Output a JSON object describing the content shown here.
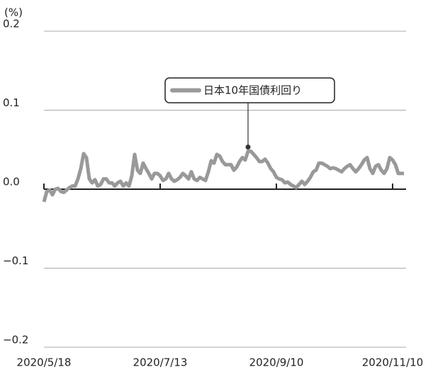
{
  "chart_data": {
    "type": "line",
    "y_label": "(%)",
    "categories": [
      "2020/5/18",
      null,
      null,
      null,
      null,
      null,
      null,
      null,
      null,
      null,
      null,
      null,
      null,
      null,
      null,
      null,
      null,
      null,
      null,
      null,
      null,
      null,
      null,
      null,
      null,
      null,
      null,
      null,
      null,
      null,
      null,
      null,
      null,
      null,
      null,
      null,
      null,
      null,
      null,
      null,
      null,
      "2020/7/13",
      null,
      null,
      null,
      null,
      null,
      null,
      null,
      null,
      null,
      null,
      null,
      null,
      null,
      null,
      null,
      null,
      null,
      null,
      null,
      null,
      null,
      null,
      null,
      null,
      null,
      null,
      null,
      null,
      null,
      null,
      null,
      null,
      null,
      null,
      null,
      null,
      null,
      null,
      null,
      null,
      "2020/9/10",
      null,
      null,
      null,
      null,
      null,
      null,
      null,
      null,
      null,
      null,
      null,
      null,
      null,
      null,
      null,
      null,
      null,
      null,
      null,
      null,
      null,
      null,
      null,
      null,
      null,
      null,
      null,
      null,
      null,
      null,
      null,
      null,
      null,
      null,
      null,
      null,
      null,
      null,
      null,
      null,
      "2020/11/10",
      null,
      null,
      null,
      null
    ],
    "series": [
      {
        "name": "日本10年国債利回り",
        "color": "#999999",
        "values": [
          -0.016,
          -0.003,
          -0.001,
          -0.007,
          0,
          0.001,
          -0.003,
          -0.004,
          -0.001,
          0.002,
          0.004,
          0.004,
          0.013,
          0.026,
          0.045,
          0.04,
          0.013,
          0.008,
          0.012,
          0.004,
          0.006,
          0.013,
          0.013,
          0.008,
          0.008,
          0.004,
          0.008,
          0.01,
          0.004,
          0.008,
          0.004,
          0.017,
          0.044,
          0.024,
          0.02,
          0.033,
          0.026,
          0.02,
          0.013,
          0.02,
          0.02,
          0.017,
          0.011,
          0.013,
          0.02,
          0.013,
          0.01,
          0.012,
          0.015,
          0.02,
          0.017,
          0.013,
          0.022,
          0.013,
          0.011,
          0.015,
          0.013,
          0.011,
          0.022,
          0.036,
          0.033,
          0.044,
          0.042,
          0.035,
          0.031,
          0.031,
          0.031,
          0.024,
          0.028,
          0.035,
          0.04,
          0.037,
          0.048,
          0.048,
          0.044,
          0.04,
          0.035,
          0.035,
          0.038,
          0.033,
          0.026,
          0.022,
          0.015,
          0.013,
          0.012,
          0.008,
          0.009,
          0.006,
          0.004,
          0.002,
          0.006,
          0.01,
          0.006,
          0.01,
          0.015,
          0.022,
          0.024,
          0.033,
          0.033,
          0.031,
          0.029,
          0.026,
          0.027,
          0.026,
          0.024,
          0.022,
          0.026,
          0.029,
          0.031,
          0.026,
          0.022,
          0.026,
          0.031,
          0.037,
          0.04,
          0.026,
          0.02,
          0.029,
          0.031,
          0.024,
          0.02,
          0.026,
          0.04,
          0.037,
          0.031,
          0.02,
          0.02,
          0.02
        ]
      }
    ],
    "ylim": [
      -0.2,
      0.2
    ],
    "yticks": [
      {
        "value": -0.2,
        "label": "−0.2"
      },
      {
        "value": -0.1,
        "label": "−0.1"
      },
      {
        "value": 0,
        "label": "0.0"
      },
      0.1,
      0.2
    ],
    "grid": true
  }
}
